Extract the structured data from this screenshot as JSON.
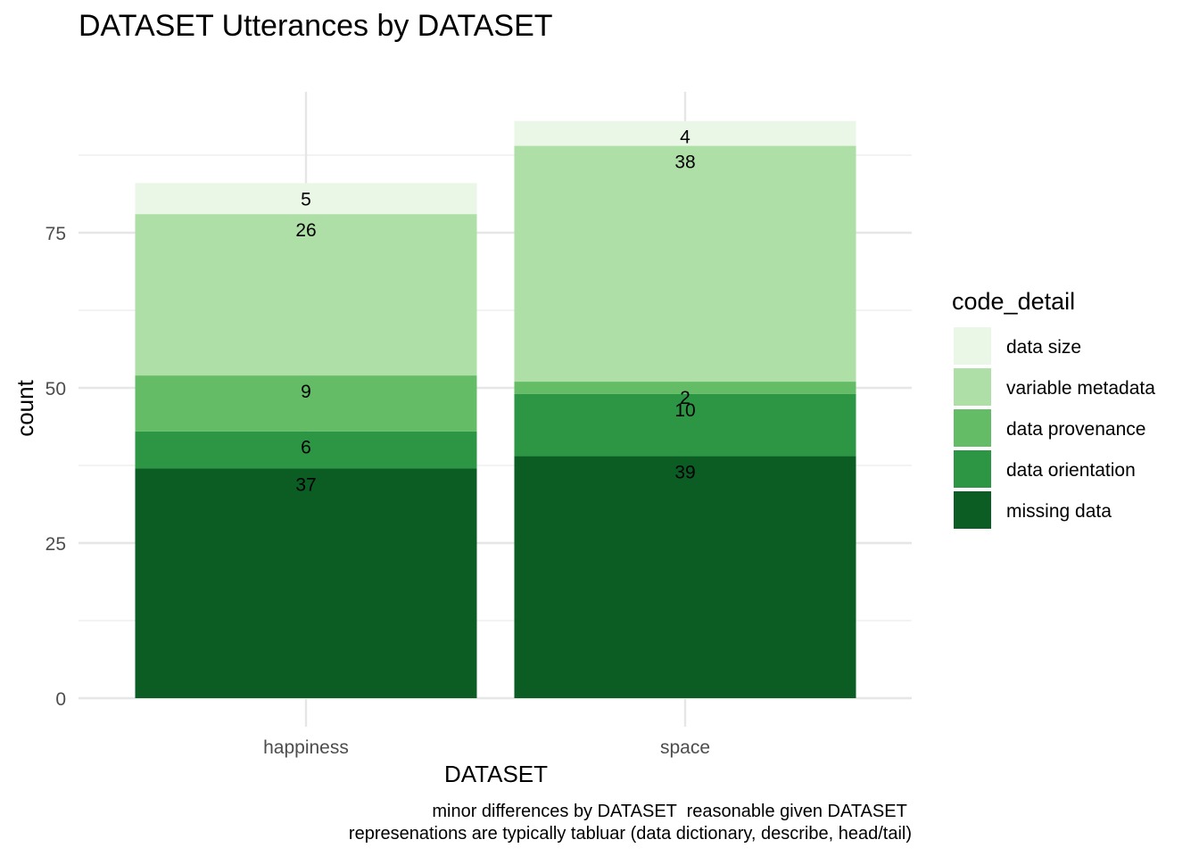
{
  "chart_data": {
    "type": "bar",
    "stacked": true,
    "title": "DATASET Utterances by DATASET",
    "xlabel": "DATASET",
    "ylabel": "count",
    "categories": [
      "happiness",
      "space"
    ],
    "series": [
      {
        "name": "missing data",
        "color": "#0b5d24",
        "values": [
          37,
          39
        ]
      },
      {
        "name": "data orientation",
        "color": "#2c9645",
        "values": [
          6,
          10
        ]
      },
      {
        "name": "data provenance",
        "color": "#65bc66",
        "values": [
          9,
          2
        ]
      },
      {
        "name": "variable metadata",
        "color": "#aedfa6",
        "values": [
          26,
          38
        ]
      },
      {
        "name": "data size",
        "color": "#ebf7e6",
        "values": [
          5,
          4
        ]
      }
    ],
    "legend_title": "code_detail",
    "legend_order": [
      "data size",
      "variable metadata",
      "data provenance",
      "data orientation",
      "missing data"
    ],
    "y_ticks": [
      0,
      25,
      50,
      75
    ],
    "ylim": [
      0,
      96.5
    ],
    "grid": true,
    "legend_position": "right",
    "caption_lines": [
      "minor differences by DATASET  reasonable given DATASET ",
      "represenations are typically tabluar (data dictionary, describe, head/tail)"
    ]
  }
}
